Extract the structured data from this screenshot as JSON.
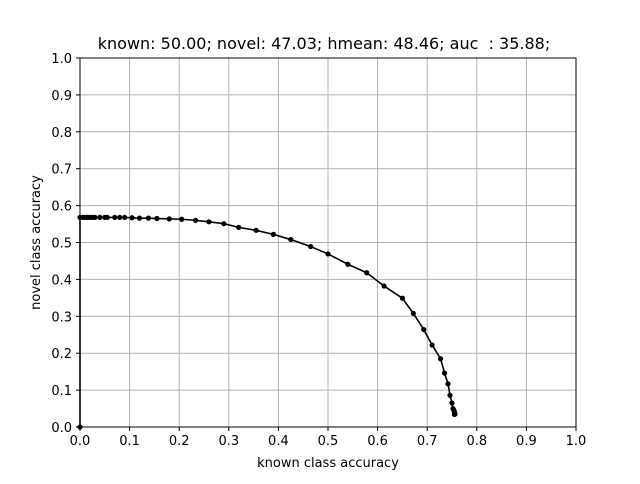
{
  "chart_data": {
    "type": "line",
    "title": "known: 50.00; novel: 47.03; hmean: 48.46; auc  : 35.88;",
    "xlabel": "known class accuracy",
    "ylabel": "novel class accuracy",
    "xlim": [
      0.0,
      1.0
    ],
    "ylim": [
      0.0,
      1.0
    ],
    "xticks": [
      "0.0",
      "0.1",
      "0.2",
      "0.3",
      "0.4",
      "0.5",
      "0.6",
      "0.7",
      "0.8",
      "0.9",
      "1.0"
    ],
    "yticks": [
      "0.0",
      "0.1",
      "0.2",
      "0.3",
      "0.4",
      "0.5",
      "0.6",
      "0.7",
      "0.8",
      "0.9",
      "1.0"
    ],
    "grid": true,
    "legend": "none",
    "colors": {
      "line": "#000000",
      "grid": "#b0b0b0"
    },
    "series": [
      {
        "marker": "dot",
        "x": [
          0.0,
          0.0,
          0.005,
          0.01,
          0.015,
          0.02,
          0.025,
          0.03,
          0.04,
          0.05,
          0.055,
          0.07,
          0.08,
          0.09,
          0.105,
          0.12,
          0.138,
          0.155,
          0.18,
          0.205,
          0.233,
          0.26,
          0.29,
          0.32,
          0.355,
          0.39,
          0.425,
          0.465,
          0.5,
          0.54,
          0.578,
          0.613,
          0.65,
          0.672,
          0.693,
          0.71,
          0.727,
          0.735,
          0.742,
          0.746,
          0.75,
          0.752,
          0.754,
          0.755,
          0.755,
          0.756,
          0.755
        ],
        "y": [
          0.0,
          0.568,
          0.568,
          0.568,
          0.568,
          0.568,
          0.568,
          0.568,
          0.568,
          0.568,
          0.568,
          0.568,
          0.568,
          0.568,
          0.567,
          0.566,
          0.566,
          0.565,
          0.564,
          0.563,
          0.56,
          0.556,
          0.551,
          0.541,
          0.533,
          0.522,
          0.508,
          0.489,
          0.469,
          0.441,
          0.418,
          0.382,
          0.349,
          0.308,
          0.264,
          0.222,
          0.185,
          0.146,
          0.117,
          0.086,
          0.065,
          0.05,
          0.045,
          0.04,
          0.037,
          0.035,
          0.034
        ]
      }
    ]
  }
}
